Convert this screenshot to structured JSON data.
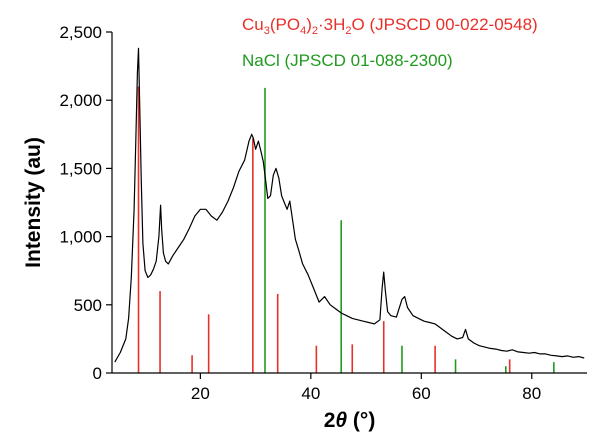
{
  "chart_data": {
    "type": "line",
    "xlabel": "2θ (°)",
    "ylabel": "Intensity (au)",
    "xlim": [
      4,
      90
    ],
    "ylim": [
      0,
      2500
    ],
    "xticks": [
      20,
      40,
      60,
      80
    ],
    "yticks": [
      0,
      500,
      1000,
      1500,
      2000,
      2500
    ],
    "ytick_labels": [
      "0",
      "500",
      "1,000",
      "1,500",
      "2,000",
      "2,500"
    ],
    "grid": false,
    "legend_position": "top-right",
    "series": [
      {
        "type": "line",
        "color": "#000000",
        "x": [
          4.5,
          5.5,
          6.5,
          7.0,
          7.5,
          8.0,
          8.3,
          8.6,
          8.8,
          9.0,
          9.3,
          9.6,
          10.0,
          10.5,
          11.0,
          11.5,
          12.0,
          12.5,
          12.8,
          13.0,
          13.3,
          13.7,
          14.2,
          15.0,
          16.0,
          17.0,
          18.0,
          19.0,
          20.0,
          21.0,
          22.0,
          23.0,
          24.0,
          25.0,
          26.0,
          27.0,
          28.0,
          28.8,
          29.3,
          29.6,
          30.0,
          30.5,
          31.0,
          31.4,
          31.8,
          32.2,
          32.7,
          33.2,
          33.7,
          34.2,
          34.7,
          35.2,
          35.7,
          36.2,
          36.7,
          37.2,
          37.8,
          38.5,
          39.5,
          40.5,
          41.5,
          42.5,
          43.5,
          44.5,
          45.5,
          46.5,
          47.5,
          48.5,
          49.5,
          50.5,
          51.5,
          52.5,
          52.9,
          53.2,
          53.5,
          53.9,
          54.5,
          55.5,
          56.5,
          57.0,
          57.5,
          58.5,
          59.5,
          60.5,
          61.5,
          62.5,
          63.5,
          64.5,
          65.5,
          66.5,
          67.5,
          68.0,
          68.5,
          69.5,
          70.5,
          71.5,
          72.5,
          73.5,
          74.5,
          75.5,
          76.5,
          77.5,
          78.5,
          79.5,
          80.5,
          81.5,
          82.5,
          83.5,
          84.5,
          85.5,
          86.5,
          87.5,
          88.5,
          89.5
        ],
        "y": [
          80,
          150,
          250,
          400,
          700,
          1200,
          1700,
          2200,
          2380,
          2000,
          1400,
          950,
          750,
          700,
          720,
          760,
          820,
          1000,
          1230,
          1050,
          880,
          820,
          800,
          860,
          920,
          980,
          1060,
          1150,
          1200,
          1200,
          1150,
          1120,
          1180,
          1260,
          1360,
          1480,
          1560,
          1700,
          1750,
          1720,
          1640,
          1700,
          1620,
          1550,
          1420,
          1280,
          1300,
          1450,
          1500,
          1430,
          1300,
          1250,
          1200,
          1260,
          1120,
          980,
          900,
          800,
          720,
          620,
          520,
          560,
          500,
          470,
          440,
          420,
          400,
          390,
          380,
          370,
          360,
          390,
          620,
          740,
          600,
          450,
          420,
          410,
          540,
          560,
          480,
          420,
          400,
          380,
          370,
          360,
          330,
          300,
          270,
          250,
          260,
          320,
          250,
          220,
          200,
          190,
          180,
          175,
          165,
          160,
          170,
          155,
          150,
          145,
          150,
          140,
          140,
          130,
          125,
          120,
          125,
          115,
          120,
          110
        ]
      }
    ],
    "reference_patterns": [
      {
        "name": "Cu3(PO4)2·3H2O (JPSCD 00-022-0548)",
        "color": "#e8302a",
        "peaks_x": [
          8.8,
          12.7,
          18.5,
          21.5,
          29.5,
          34.0,
          41.0,
          47.5,
          53.2,
          62.5,
          76.0
        ],
        "peaks_y": [
          2100,
          600,
          130,
          430,
          1720,
          580,
          200,
          210,
          380,
          200,
          100
        ]
      },
      {
        "name": "NaCl (JPSCD 01-088-2300)",
        "color": "#1f9a1f",
        "peaks_x": [
          31.7,
          45.5,
          56.5,
          66.2,
          75.3,
          84.0
        ],
        "peaks_y": [
          2090,
          1120,
          200,
          100,
          50,
          80
        ]
      }
    ],
    "legend_segments": [
      [
        {
          "text": "Cu",
          "pos": "base"
        },
        {
          "text": "3",
          "pos": "sub"
        },
        {
          "text": "(PO",
          "pos": "base"
        },
        {
          "text": "4",
          "pos": "sub"
        },
        {
          "text": ")",
          "pos": "base"
        },
        {
          "text": "2",
          "pos": "sub"
        },
        {
          "text": "·3H",
          "pos": "base"
        },
        {
          "text": "2",
          "pos": "sub"
        },
        {
          "text": "O (JPSCD 00-022-0548)",
          "pos": "base"
        }
      ],
      [
        {
          "text": "NaCl (JPSCD 01-088-2300)",
          "pos": "base"
        }
      ]
    ]
  }
}
